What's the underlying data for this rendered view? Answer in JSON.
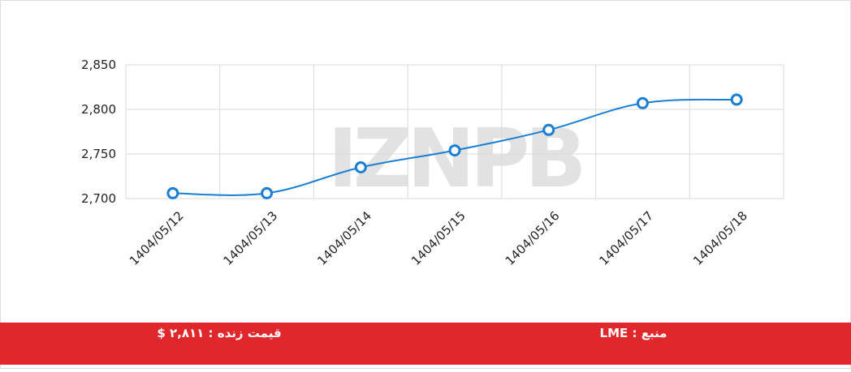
{
  "chart_data": {
    "type": "line",
    "categories": [
      "1404/05/12",
      "1404/05/13",
      "1404/05/14",
      "1404/05/15",
      "1404/05/16",
      "1404/05/17",
      "1404/05/18"
    ],
    "series": [
      {
        "color": "#1a7fd4",
        "values": [
          2706,
          2706,
          2735,
          2754,
          2777,
          2807,
          2811
        ]
      }
    ],
    "ylim": [
      2700,
      2850
    ],
    "yticks": [
      {
        "value": 2700,
        "label": "2,700"
      },
      {
        "value": 2750,
        "label": "2,750"
      },
      {
        "value": 2800,
        "label": "2,800"
      },
      {
        "value": 2850,
        "label": "2,850"
      }
    ],
    "grid": true
  },
  "watermark": "IZNPB",
  "footer": {
    "live_price": "قیمت زنده : ۲,۸۱۱ $",
    "source": "منبع : LME"
  }
}
